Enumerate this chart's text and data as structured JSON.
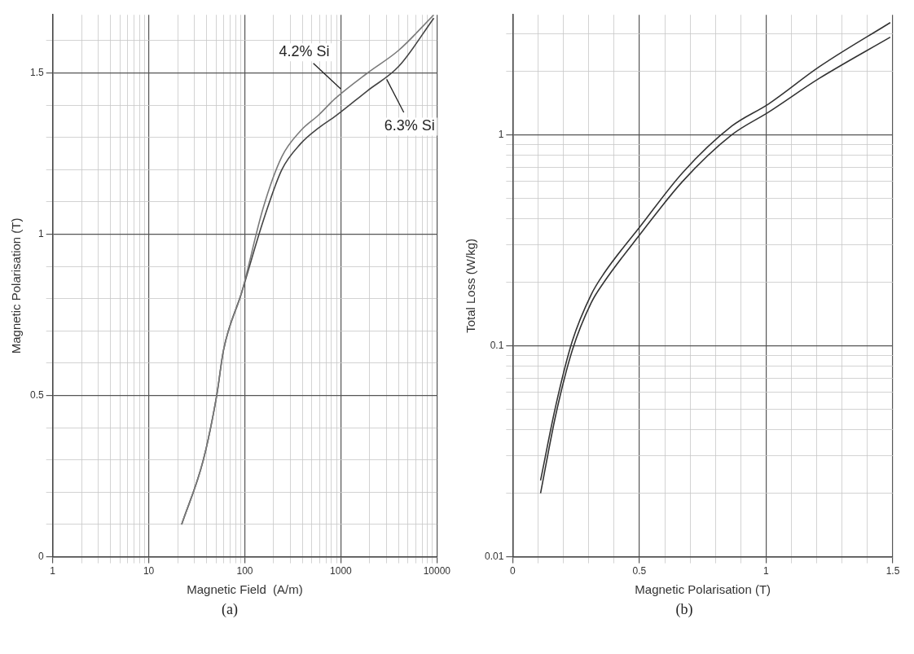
{
  "chart_data": [
    {
      "type": "line",
      "xlabel": "Magnetic Field  (A/m)",
      "ylabel": "Magnetic Polarisation (T)",
      "log": "x",
      "grid": true,
      "marker": "none",
      "line_style": "solid",
      "xlim": [
        1,
        10000
      ],
      "ylim": [
        0,
        1.68
      ],
      "xticks": [
        1,
        {
          "value": 2,
          "label": null
        },
        {
          "value": 3,
          "label": null
        },
        {
          "value": 4,
          "label": null
        },
        {
          "value": 5,
          "label": null
        },
        {
          "value": 6,
          "label": null
        },
        {
          "value": 7,
          "label": null
        },
        {
          "value": 8,
          "label": null
        },
        {
          "value": 9,
          "label": null
        },
        10,
        {
          "value": 20,
          "label": null
        },
        {
          "value": 30,
          "label": null
        },
        {
          "value": 40,
          "label": null
        },
        {
          "value": 50,
          "label": null
        },
        {
          "value": 60,
          "label": null
        },
        {
          "value": 70,
          "label": null
        },
        {
          "value": 80,
          "label": null
        },
        {
          "value": 90,
          "label": null
        },
        100,
        {
          "value": 200,
          "label": null
        },
        {
          "value": 300,
          "label": null
        },
        {
          "value": 400,
          "label": null
        },
        {
          "value": 500,
          "label": null
        },
        {
          "value": 600,
          "label": null
        },
        {
          "value": 700,
          "label": null
        },
        {
          "value": 800,
          "label": null
        },
        {
          "value": 900,
          "label": null
        },
        1000,
        {
          "value": 2000,
          "label": null
        },
        {
          "value": 3000,
          "label": null
        },
        {
          "value": 4000,
          "label": null
        },
        {
          "value": 5000,
          "label": null
        },
        {
          "value": 6000,
          "label": null
        },
        {
          "value": 7000,
          "label": null
        },
        {
          "value": 8000,
          "label": null
        },
        {
          "value": 9000,
          "label": null
        },
        10000
      ],
      "yticks": [
        0,
        {
          "value": 0.1,
          "label": null
        },
        {
          "value": 0.2,
          "label": null
        },
        {
          "value": 0.3,
          "label": null
        },
        {
          "value": 0.4,
          "label": null
        },
        0.5,
        {
          "value": 0.6,
          "label": null
        },
        {
          "value": 0.7,
          "label": null
        },
        {
          "value": 0.8,
          "label": null
        },
        {
          "value": 0.9,
          "label": null
        },
        1,
        {
          "value": 1.1,
          "label": null
        },
        {
          "value": 1.2,
          "label": null
        },
        {
          "value": 1.3,
          "label": null
        },
        {
          "value": 1.4,
          "label": null
        },
        1.5,
        {
          "value": 1.6,
          "label": null
        }
      ],
      "series": [
        {
          "color": "#7a7a7a",
          "x": [
            22,
            37,
            51,
            60,
            93,
            155,
            243,
            380,
            590,
            870,
            1900,
            4000,
            9300
          ],
          "values": [
            0.1,
            0.3,
            0.5,
            0.64,
            0.82,
            1.08,
            1.24,
            1.32,
            1.37,
            1.42,
            1.5,
            1.57,
            1.68
          ]
        },
        {
          "color": "#444444",
          "x": [
            22,
            37,
            51,
            60,
            93,
            155,
            243,
            380,
            590,
            870,
            1900,
            4000,
            9300
          ],
          "values": [
            0.1,
            0.3,
            0.5,
            0.64,
            0.82,
            1.04,
            1.2,
            1.28,
            1.33,
            1.365,
            1.445,
            1.52,
            1.67
          ]
        }
      ],
      "annotations": [
        {
          "text": "4.2% Si",
          "x": 1000,
          "y": 1.45
        },
        {
          "text": "6.3% Si",
          "x": 3000,
          "y": 1.48
        },
        "(a)"
      ]
    },
    {
      "type": "line",
      "xlabel": "Magnetic Polarisation (T)",
      "ylabel": "Total Loss (W/kg)",
      "log": "y",
      "grid": true,
      "marker": "none",
      "line_style": "solid",
      "xlim": [
        0,
        1.5
      ],
      "ylim": [
        0.01,
        3.7
      ],
      "xticks": [
        0,
        {
          "value": 0.1,
          "label": null
        },
        {
          "value": 0.2,
          "label": null
        },
        {
          "value": 0.3,
          "label": null
        },
        {
          "value": 0.4,
          "label": null
        },
        0.5,
        {
          "value": 0.6,
          "label": null
        },
        {
          "value": 0.7,
          "label": null
        },
        {
          "value": 0.8,
          "label": null
        },
        {
          "value": 0.9,
          "label": null
        },
        1,
        {
          "value": 1.1,
          "label": null
        },
        {
          "value": 1.2,
          "label": null
        },
        {
          "value": 1.3,
          "label": null
        },
        {
          "value": 1.4,
          "label": null
        },
        1.5
      ],
      "yticks": [
        0.01,
        {
          "value": 0.02,
          "label": null
        },
        {
          "value": 0.03,
          "label": null
        },
        {
          "value": 0.04,
          "label": null
        },
        {
          "value": 0.05,
          "label": null
        },
        {
          "value": 0.06,
          "label": null
        },
        {
          "value": 0.07,
          "label": null
        },
        {
          "value": 0.08,
          "label": null
        },
        {
          "value": 0.09,
          "label": null
        },
        0.1,
        {
          "value": 0.2,
          "label": null
        },
        {
          "value": 0.3,
          "label": null
        },
        {
          "value": 0.4,
          "label": null
        },
        {
          "value": 0.5,
          "label": null
        },
        {
          "value": 0.6,
          "label": null
        },
        {
          "value": 0.7,
          "label": null
        },
        {
          "value": 0.8,
          "label": null
        },
        {
          "value": 0.9,
          "label": null
        },
        1,
        {
          "value": 2,
          "label": null
        },
        {
          "value": 3,
          "label": null
        }
      ],
      "series": [
        {
          "color": "#333333",
          "x": [
            0.11,
            0.17,
            0.235,
            0.31,
            0.36,
            0.505,
            0.67,
            0.865,
            1.01,
            1.21,
            1.49
          ],
          "values": [
            0.023,
            0.052,
            0.105,
            0.175,
            0.22,
            0.37,
            0.66,
            1.1,
            1.4,
            2.1,
            3.4
          ]
        },
        {
          "color": "#333333",
          "x": [
            0.11,
            0.17,
            0.235,
            0.31,
            0.36,
            0.505,
            0.67,
            0.865,
            1.01,
            1.21,
            1.49
          ],
          "values": [
            0.02,
            0.047,
            0.095,
            0.16,
            0.2,
            0.34,
            0.6,
            1.0,
            1.28,
            1.85,
            2.9
          ]
        }
      ],
      "annotations": [
        "(b)"
      ]
    }
  ]
}
